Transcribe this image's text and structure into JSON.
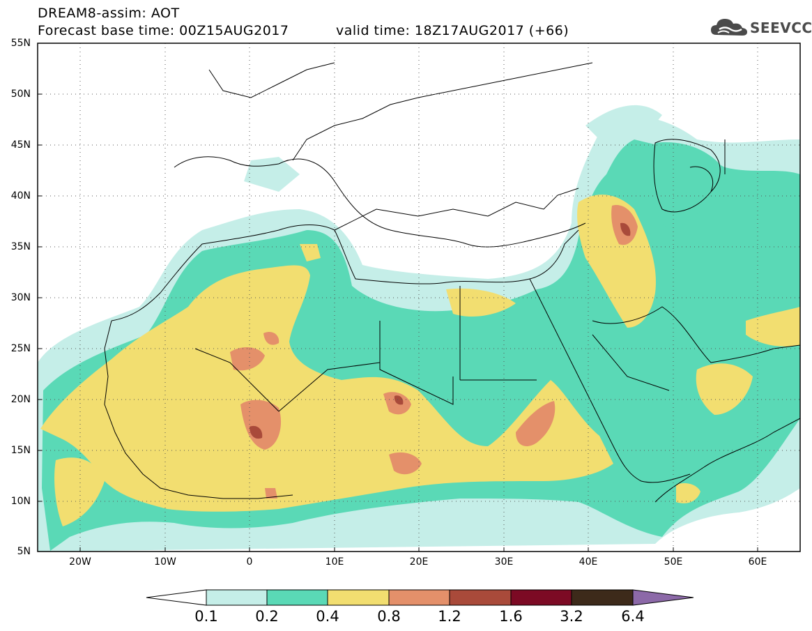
{
  "header": {
    "title_line1": "DREAM8-assim: AOT",
    "base_time": "Forecast base time: 00Z15AUG2017",
    "valid_time": "valid time: 18Z17AUG2017 (+66)"
  },
  "logo": {
    "text": "SEEVCCC",
    "icon": "cloud-icon"
  },
  "map": {
    "lat_labels": [
      "55N",
      "50N",
      "45N",
      "40N",
      "35N",
      "30N",
      "25N",
      "20N",
      "15N",
      "10N",
      "5N"
    ],
    "lon_labels": [
      "20W",
      "10W",
      "0",
      "10E",
      "20E",
      "30E",
      "40E",
      "50E",
      "60E"
    ],
    "lat_range": [
      5,
      55
    ],
    "lon_range": [
      -25,
      65
    ],
    "grid": "dotted"
  },
  "colorbar": {
    "colors": [
      "#ffffff",
      "#c5eee8",
      "#5ad9b6",
      "#f2de70",
      "#e4906a",
      "#a94a3a",
      "#7c0a24",
      "#3d2a1a",
      "#8c69a8"
    ],
    "labels": [
      "0.1",
      "0.2",
      "0.4",
      "0.8",
      "1.2",
      "1.6",
      "3.2",
      "6.4"
    ]
  }
}
